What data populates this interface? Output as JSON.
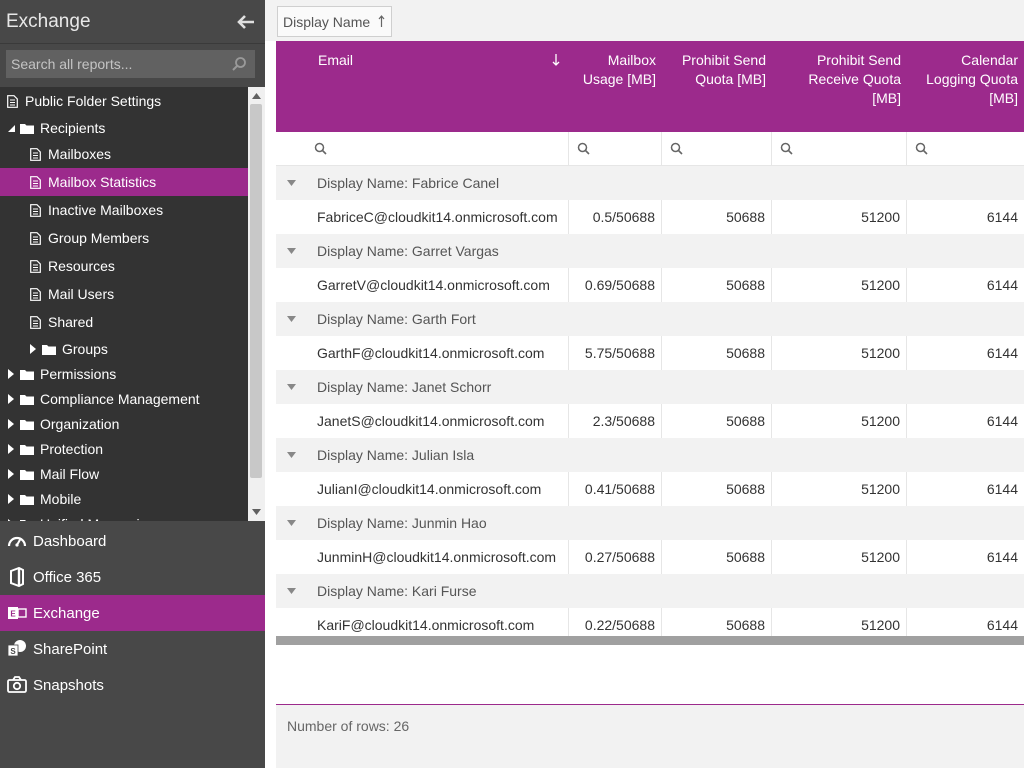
{
  "app": {
    "title": "Exchange"
  },
  "search": {
    "placeholder": "Search all reports..."
  },
  "tree": [
    {
      "label": "Public Folder Settings",
      "type": "doc",
      "indent": 0,
      "selected": false
    },
    {
      "label": "Recipients",
      "type": "folder-open",
      "indent": 0,
      "selected": false
    },
    {
      "label": "Mailboxes",
      "type": "doc",
      "indent": 1,
      "selected": false
    },
    {
      "label": "Mailbox Statistics",
      "type": "doc",
      "indent": 1,
      "selected": true
    },
    {
      "label": "Inactive Mailboxes",
      "type": "doc",
      "indent": 1,
      "selected": false
    },
    {
      "label": "Group Members",
      "type": "doc",
      "indent": 1,
      "selected": false
    },
    {
      "label": "Resources",
      "type": "doc",
      "indent": 1,
      "selected": false
    },
    {
      "label": "Mail Users",
      "type": "doc",
      "indent": 1,
      "selected": false
    },
    {
      "label": "Shared",
      "type": "doc",
      "indent": 1,
      "selected": false
    },
    {
      "label": "Groups",
      "type": "folder-closed",
      "indent": 1,
      "selected": false
    },
    {
      "label": "Permissions",
      "type": "folder-closed",
      "indent": 0,
      "selected": false
    },
    {
      "label": "Compliance Management",
      "type": "folder-closed",
      "indent": 0,
      "selected": false
    },
    {
      "label": "Organization",
      "type": "folder-closed",
      "indent": 0,
      "selected": false
    },
    {
      "label": "Protection",
      "type": "folder-closed",
      "indent": 0,
      "selected": false
    },
    {
      "label": "Mail Flow",
      "type": "folder-closed",
      "indent": 0,
      "selected": false
    },
    {
      "label": "Mobile",
      "type": "folder-closed",
      "indent": 0,
      "selected": false
    },
    {
      "label": "Unified Messaging",
      "type": "folder-closed",
      "indent": 0,
      "selected": false
    }
  ],
  "modules": [
    {
      "label": "Dashboard",
      "icon": "dashboard-icon",
      "active": false
    },
    {
      "label": "Office 365",
      "icon": "office365-icon",
      "active": false
    },
    {
      "label": "Exchange",
      "icon": "exchange-icon",
      "active": true
    },
    {
      "label": "SharePoint",
      "icon": "sharepoint-icon",
      "active": false
    },
    {
      "label": "Snapshots",
      "icon": "camera-icon",
      "active": false
    }
  ],
  "grouping": {
    "chip_label": "Display Name"
  },
  "columns": {
    "email": "Email",
    "usage": [
      "Mailbox",
      "Usage [MB]"
    ],
    "prohibit_send": [
      "Prohibit Send",
      "Quota [MB]"
    ],
    "prohibit_send_receive": [
      "Prohibit Send",
      "Receive Quota",
      "[MB]"
    ],
    "calendar_logging": [
      "Calendar",
      "Logging Quota",
      "[MB]"
    ]
  },
  "groups": [
    {
      "header": "Display Name: Fabrice Canel",
      "email": "FabriceC@cloudkit14.onmicrosoft.com",
      "usage": "0.5/50688",
      "send": "50688",
      "send_receive": "51200",
      "calendar": "6144"
    },
    {
      "header": "Display Name: Garret Vargas",
      "email": "GarretV@cloudkit14.onmicrosoft.com",
      "usage": "0.69/50688",
      "send": "50688",
      "send_receive": "51200",
      "calendar": "6144"
    },
    {
      "header": "Display Name: Garth Fort",
      "email": "GarthF@cloudkit14.onmicrosoft.com",
      "usage": "5.75/50688",
      "send": "50688",
      "send_receive": "51200",
      "calendar": "6144"
    },
    {
      "header": "Display Name: Janet Schorr",
      "email": "JanetS@cloudkit14.onmicrosoft.com",
      "usage": "2.3/50688",
      "send": "50688",
      "send_receive": "51200",
      "calendar": "6144"
    },
    {
      "header": "Display Name: Julian Isla",
      "email": "JulianI@cloudkit14.onmicrosoft.com",
      "usage": "0.41/50688",
      "send": "50688",
      "send_receive": "51200",
      "calendar": "6144"
    },
    {
      "header": "Display Name: Junmin Hao",
      "email": "JunminH@cloudkit14.onmicrosoft.com",
      "usage": "0.27/50688",
      "send": "50688",
      "send_receive": "51200",
      "calendar": "6144"
    },
    {
      "header": "Display Name: Kari Furse",
      "email": "KariF@cloudkit14.onmicrosoft.com",
      "usage": "0.22/50688",
      "send": "50688",
      "send_receive": "51200",
      "calendar": "6144"
    }
  ],
  "footer": {
    "row_count": "Number of rows: 26"
  },
  "colors": {
    "accent": "#9c2a8c",
    "sidebar": "#484848",
    "tree_bg": "#333333"
  }
}
